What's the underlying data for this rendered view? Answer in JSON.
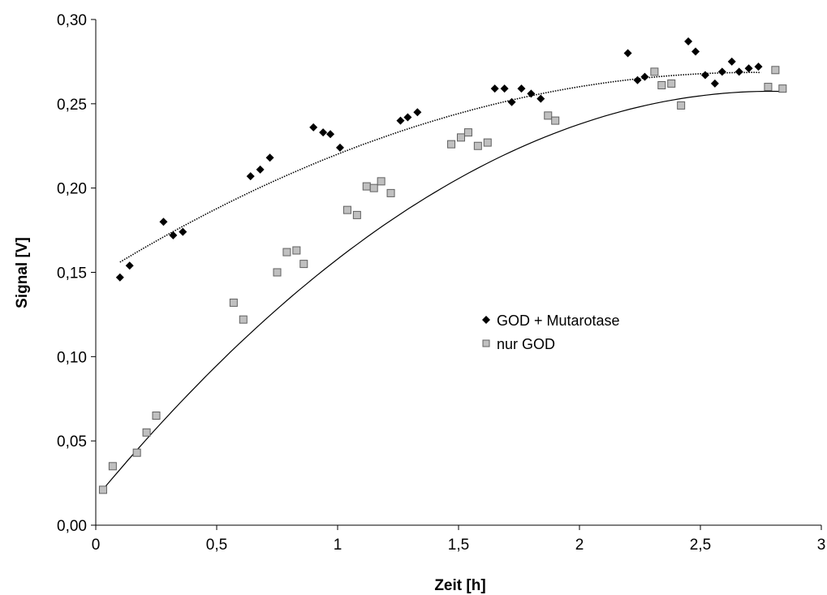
{
  "chart_data": {
    "type": "scatter",
    "title": "",
    "xlabel": "Zeit [h]",
    "ylabel": "Signal [V]",
    "xlim": [
      0,
      3
    ],
    "ylim": [
      0,
      0.3
    ],
    "x_ticks": [
      0,
      0.5,
      1,
      1.5,
      2,
      2.5,
      3
    ],
    "x_tick_labels": [
      "0",
      "0,5",
      "1",
      "1,5",
      "2",
      "2,5",
      "3"
    ],
    "y_ticks": [
      0,
      0.05,
      0.1,
      0.15,
      0.2,
      0.25,
      0.3
    ],
    "y_tick_labels": [
      "0,00",
      "0,05",
      "0,10",
      "0,15",
      "0,20",
      "0,25",
      "0,30"
    ],
    "grid": false,
    "legend_position": "center-right",
    "series": [
      {
        "name": "GOD + Mutarotase",
        "marker": "diamond",
        "color": "#000000",
        "trendline": {
          "style": "dotted",
          "type": "polynomial",
          "coefficients": [
            0.1473,
            0.0892,
            -0.0164
          ],
          "x_range": [
            0.1,
            2.75
          ]
        },
        "x": [
          0.1,
          0.14,
          0.28,
          0.32,
          0.36,
          0.64,
          0.68,
          0.72,
          0.9,
          0.94,
          0.97,
          1.01,
          1.26,
          1.29,
          1.33,
          1.65,
          1.69,
          1.72,
          1.76,
          1.8,
          1.84,
          2.2,
          2.24,
          2.27,
          2.45,
          2.48,
          2.52,
          2.56,
          2.59,
          2.63,
          2.66,
          2.7,
          2.74
        ],
        "y": [
          0.147,
          0.154,
          0.18,
          0.172,
          0.174,
          0.207,
          0.211,
          0.218,
          0.236,
          0.233,
          0.232,
          0.224,
          0.24,
          0.242,
          0.245,
          0.259,
          0.259,
          0.251,
          0.259,
          0.256,
          0.253,
          0.28,
          0.264,
          0.266,
          0.287,
          0.281,
          0.267,
          0.262,
          0.269,
          0.275,
          0.269,
          0.271,
          0.272
        ]
      },
      {
        "name": "nur GOD",
        "marker": "square",
        "color": "#c0c0c0",
        "trendline": {
          "style": "solid",
          "type": "polynomial",
          "coefficients": [
            0.0161,
            0.1727,
            -0.0309
          ],
          "x_range": [
            0.03,
            2.84
          ]
        },
        "x": [
          0.03,
          0.07,
          0.17,
          0.21,
          0.25,
          0.57,
          0.61,
          0.75,
          0.79,
          0.83,
          0.86,
          1.04,
          1.08,
          1.12,
          1.15,
          1.18,
          1.22,
          1.47,
          1.51,
          1.54,
          1.58,
          1.62,
          1.87,
          1.9,
          2.31,
          2.34,
          2.38,
          2.42,
          2.78,
          2.81,
          2.84
        ],
        "y": [
          0.021,
          0.035,
          0.043,
          0.055,
          0.065,
          0.132,
          0.122,
          0.15,
          0.162,
          0.163,
          0.155,
          0.187,
          0.184,
          0.201,
          0.2,
          0.204,
          0.197,
          0.226,
          0.23,
          0.233,
          0.225,
          0.227,
          0.243,
          0.24,
          0.269,
          0.261,
          0.262,
          0.249,
          0.26,
          0.27,
          0.259
        ]
      }
    ]
  }
}
